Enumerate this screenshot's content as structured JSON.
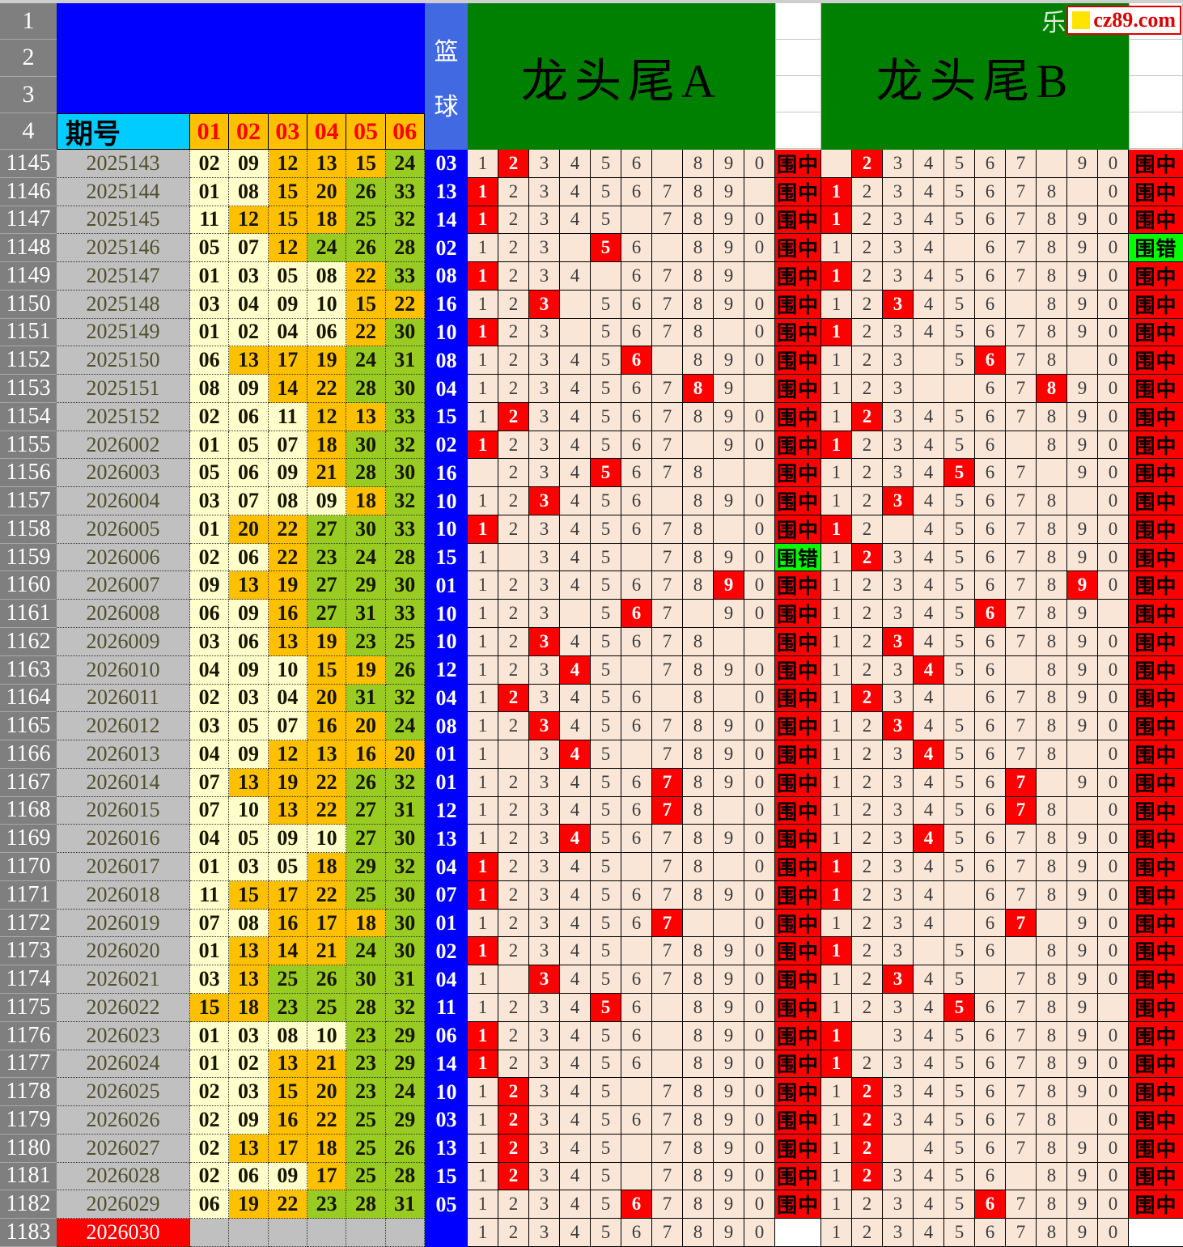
{
  "labels": {
    "period_col": "期号",
    "ball_headers": [
      "01",
      "02",
      "03",
      "04",
      "05",
      "06"
    ],
    "blue_col_chars": [
      "篮",
      "球"
    ],
    "title_a": "龙头尾A",
    "title_b": "龙头尾B",
    "hit": "围中",
    "miss": "围错",
    "header_row_labels": [
      "1",
      "2",
      "3",
      "4"
    ]
  },
  "logo": {
    "prefix": "乐",
    "text": "cz89.com"
  },
  "digits": [
    "1",
    "2",
    "3",
    "4",
    "5",
    "6",
    "7",
    "8",
    "9",
    "0"
  ],
  "colors": {
    "blue_block": "#0000FF",
    "blue_ball_bg": "#0000FF",
    "blue_header": "#4169E1",
    "gray_rownum": "#7F7F7F",
    "silver": "#C0C0C0",
    "cyan_header": "#00CCFF",
    "gold": "#FFC000",
    "pale": "#FFFFCC",
    "green_ball": "#99CC22",
    "green_title": "#008000",
    "cream": "#FAE6D7",
    "red": "#FF0000",
    "miss_green": "#00FF00",
    "logo_red": "#DD0000",
    "logo_yellow": "#FFE400",
    "period_text": "#4F4F2A"
  },
  "rows": [
    {
      "n": "1145",
      "p": "2025143",
      "b": [
        "02",
        "09",
        "12",
        "13",
        "15",
        "24"
      ],
      "q": "03",
      "ah": "2",
      "ax": [
        "7"
      ],
      "ar": "hit",
      "bh": "2",
      "bx": [
        "1",
        "8"
      ],
      "br": "hit"
    },
    {
      "n": "1146",
      "p": "2025144",
      "b": [
        "01",
        "08",
        "15",
        "20",
        "26",
        "33"
      ],
      "q": "13",
      "ah": "1",
      "ax": [
        "0"
      ],
      "ar": "hit",
      "bh": "1",
      "bx": [
        "9"
      ],
      "br": "hit"
    },
    {
      "n": "1147",
      "p": "2025145",
      "b": [
        "11",
        "12",
        "15",
        "18",
        "25",
        "32"
      ],
      "q": "14",
      "ah": "1",
      "ax": [
        "6"
      ],
      "ar": "hit",
      "bh": "1",
      "bx": [],
      "br": "hit"
    },
    {
      "n": "1148",
      "p": "2025146",
      "b": [
        "05",
        "07",
        "12",
        "24",
        "26",
        "28"
      ],
      "q": "02",
      "ah": "5",
      "ax": [
        "4",
        "7"
      ],
      "ar": "hit",
      "bh": "",
      "bx": [
        "5"
      ],
      "br": "miss"
    },
    {
      "n": "1149",
      "p": "2025147",
      "b": [
        "01",
        "03",
        "05",
        "08",
        "22",
        "33"
      ],
      "q": "08",
      "ah": "1",
      "ax": [
        "5",
        "0"
      ],
      "ar": "hit",
      "bh": "1",
      "bx": [],
      "br": "hit"
    },
    {
      "n": "1150",
      "p": "2025148",
      "b": [
        "03",
        "04",
        "09",
        "10",
        "15",
        "22"
      ],
      "q": "16",
      "ah": "3",
      "ax": [
        "4"
      ],
      "ar": "hit",
      "bh": "3",
      "bx": [
        "7"
      ],
      "br": "hit"
    },
    {
      "n": "1151",
      "p": "2025149",
      "b": [
        "01",
        "02",
        "04",
        "06",
        "22",
        "30"
      ],
      "q": "10",
      "ah": "1",
      "ax": [
        "4",
        "9"
      ],
      "ar": "hit",
      "bh": "1",
      "bx": [],
      "br": "hit"
    },
    {
      "n": "1152",
      "p": "2025150",
      "b": [
        "06",
        "13",
        "17",
        "19",
        "24",
        "31"
      ],
      "q": "08",
      "ah": "6",
      "ax": [
        "7"
      ],
      "ar": "hit",
      "bh": "6",
      "bx": [
        "4",
        "9"
      ],
      "br": "hit"
    },
    {
      "n": "1153",
      "p": "2025151",
      "b": [
        "08",
        "09",
        "14",
        "22",
        "28",
        "30"
      ],
      "q": "04",
      "ah": "8",
      "ax": [
        "0"
      ],
      "ar": "hit",
      "bh": "8",
      "bx": [
        "4",
        "5"
      ],
      "br": "hit"
    },
    {
      "n": "1154",
      "p": "2025152",
      "b": [
        "02",
        "06",
        "11",
        "12",
        "13",
        "33"
      ],
      "q": "15",
      "ah": "2",
      "ax": [],
      "ar": "hit",
      "bh": "2",
      "bx": [],
      "br": "hit"
    },
    {
      "n": "1155",
      "p": "2026002",
      "b": [
        "01",
        "05",
        "07",
        "18",
        "30",
        "32"
      ],
      "q": "02",
      "ah": "1",
      "ax": [
        "8"
      ],
      "ar": "hit",
      "bh": "1",
      "bx": [
        "7"
      ],
      "br": "hit"
    },
    {
      "n": "1156",
      "p": "2026003",
      "b": [
        "05",
        "06",
        "09",
        "21",
        "28",
        "30"
      ],
      "q": "16",
      "ah": "5",
      "ax": [
        "1",
        "9",
        "0"
      ],
      "ar": "hit",
      "bh": "5",
      "bx": [
        "8"
      ],
      "br": "hit"
    },
    {
      "n": "1157",
      "p": "2026004",
      "b": [
        "03",
        "07",
        "08",
        "09",
        "18",
        "32"
      ],
      "q": "10",
      "ah": "3",
      "ax": [
        "7"
      ],
      "ar": "hit",
      "bh": "3",
      "bx": [
        "9"
      ],
      "br": "hit"
    },
    {
      "n": "1158",
      "p": "2026005",
      "b": [
        "01",
        "20",
        "22",
        "27",
        "30",
        "33"
      ],
      "q": "10",
      "ah": "1",
      "ax": [
        "9"
      ],
      "ar": "hit",
      "bh": "1",
      "bx": [
        "3"
      ],
      "br": "hit"
    },
    {
      "n": "1159",
      "p": "2026006",
      "b": [
        "02",
        "06",
        "22",
        "23",
        "24",
        "28"
      ],
      "q": "15",
      "ah": "",
      "ax": [
        "2",
        "6"
      ],
      "ar": "miss",
      "bh": "2",
      "bx": [],
      "br": "hit"
    },
    {
      "n": "1160",
      "p": "2026007",
      "b": [
        "09",
        "13",
        "19",
        "27",
        "29",
        "30"
      ],
      "q": "01",
      "ah": "9",
      "ax": [],
      "ar": "hit",
      "bh": "9",
      "bx": [],
      "br": "hit"
    },
    {
      "n": "1161",
      "p": "2026008",
      "b": [
        "06",
        "09",
        "16",
        "27",
        "31",
        "33"
      ],
      "q": "10",
      "ah": "6",
      "ax": [
        "4",
        "8"
      ],
      "ar": "hit",
      "bh": "6",
      "bx": [
        "0"
      ],
      "br": "hit"
    },
    {
      "n": "1162",
      "p": "2026009",
      "b": [
        "03",
        "06",
        "13",
        "19",
        "23",
        "25"
      ],
      "q": "10",
      "ah": "3",
      "ax": [
        "9",
        "0"
      ],
      "ar": "hit",
      "bh": "3",
      "bx": [],
      "br": "hit"
    },
    {
      "n": "1163",
      "p": "2026010",
      "b": [
        "04",
        "09",
        "10",
        "15",
        "19",
        "26"
      ],
      "q": "12",
      "ah": "4",
      "ax": [
        "6"
      ],
      "ar": "hit",
      "bh": "4",
      "bx": [
        "7"
      ],
      "br": "hit"
    },
    {
      "n": "1164",
      "p": "2026011",
      "b": [
        "02",
        "03",
        "04",
        "20",
        "31",
        "32"
      ],
      "q": "04",
      "ah": "2",
      "ax": [
        "7",
        "9"
      ],
      "ar": "hit",
      "bh": "2",
      "bx": [
        "5"
      ],
      "br": "hit"
    },
    {
      "n": "1165",
      "p": "2026012",
      "b": [
        "03",
        "05",
        "07",
        "16",
        "20",
        "24"
      ],
      "q": "08",
      "ah": "3",
      "ax": [],
      "ar": "hit",
      "bh": "3",
      "bx": [],
      "br": "hit"
    },
    {
      "n": "1166",
      "p": "2026013",
      "b": [
        "04",
        "09",
        "12",
        "13",
        "16",
        "20"
      ],
      "q": "01",
      "ah": "4",
      "ax": [
        "2",
        "6"
      ],
      "ar": "hit",
      "bh": "4",
      "bx": [
        "9"
      ],
      "br": "hit"
    },
    {
      "n": "1167",
      "p": "2026014",
      "b": [
        "07",
        "13",
        "19",
        "22",
        "26",
        "32"
      ],
      "q": "01",
      "ah": "7",
      "ax": [],
      "ar": "hit",
      "bh": "7",
      "bx": [
        "8"
      ],
      "br": "hit"
    },
    {
      "n": "1168",
      "p": "2026015",
      "b": [
        "07",
        "10",
        "13",
        "22",
        "27",
        "31"
      ],
      "q": "12",
      "ah": "7",
      "ax": [
        "9"
      ],
      "ar": "hit",
      "bh": "7",
      "bx": [
        "9"
      ],
      "br": "hit"
    },
    {
      "n": "1169",
      "p": "2026016",
      "b": [
        "04",
        "05",
        "09",
        "10",
        "27",
        "30"
      ],
      "q": "13",
      "ah": "4",
      "ax": [],
      "ar": "hit",
      "bh": "4",
      "bx": [],
      "br": "hit"
    },
    {
      "n": "1170",
      "p": "2026017",
      "b": [
        "01",
        "03",
        "05",
        "18",
        "29",
        "32"
      ],
      "q": "04",
      "ah": "1",
      "ax": [
        "6",
        "9"
      ],
      "ar": "hit",
      "bh": "1",
      "bx": [],
      "br": "hit"
    },
    {
      "n": "1171",
      "p": "2026018",
      "b": [
        "11",
        "15",
        "17",
        "22",
        "25",
        "30"
      ],
      "q": "07",
      "ah": "1",
      "ax": [],
      "ar": "hit",
      "bh": "1",
      "bx": [
        "5"
      ],
      "br": "hit"
    },
    {
      "n": "1172",
      "p": "2026019",
      "b": [
        "07",
        "08",
        "16",
        "17",
        "18",
        "30"
      ],
      "q": "01",
      "ah": "7",
      "ax": [
        "8",
        "9"
      ],
      "ar": "hit",
      "bh": "7",
      "bx": [
        "5",
        "8"
      ],
      "br": "hit"
    },
    {
      "n": "1173",
      "p": "2026020",
      "b": [
        "01",
        "13",
        "14",
        "21",
        "24",
        "30"
      ],
      "q": "02",
      "ah": "1",
      "ax": [
        "6"
      ],
      "ar": "hit",
      "bh": "1",
      "bx": [
        "4",
        "7"
      ],
      "br": "hit"
    },
    {
      "n": "1174",
      "p": "2026021",
      "b": [
        "03",
        "13",
        "25",
        "26",
        "30",
        "31"
      ],
      "q": "04",
      "ah": "3",
      "ax": [
        "2"
      ],
      "ar": "hit",
      "bh": "3",
      "bx": [
        "6"
      ],
      "br": "hit"
    },
    {
      "n": "1175",
      "p": "2026022",
      "b": [
        "15",
        "18",
        "23",
        "25",
        "28",
        "32"
      ],
      "q": "11",
      "ah": "5",
      "ax": [
        "7"
      ],
      "ar": "hit",
      "bh": "5",
      "bx": [
        "0"
      ],
      "br": "hit"
    },
    {
      "n": "1176",
      "p": "2026023",
      "b": [
        "01",
        "03",
        "08",
        "10",
        "23",
        "29"
      ],
      "q": "06",
      "ah": "1",
      "ax": [
        "7"
      ],
      "ar": "hit",
      "bh": "1",
      "bx": [
        "2"
      ],
      "br": "hit"
    },
    {
      "n": "1177",
      "p": "2026024",
      "b": [
        "01",
        "02",
        "13",
        "21",
        "23",
        "29"
      ],
      "q": "14",
      "ah": "1",
      "ax": [
        "7"
      ],
      "ar": "hit",
      "bh": "1",
      "bx": [],
      "br": "hit"
    },
    {
      "n": "1178",
      "p": "2026025",
      "b": [
        "02",
        "03",
        "15",
        "20",
        "23",
        "24"
      ],
      "q": "10",
      "ah": "2",
      "ax": [
        "6"
      ],
      "ar": "hit",
      "bh": "2",
      "bx": [],
      "br": "hit"
    },
    {
      "n": "1179",
      "p": "2026026",
      "b": [
        "02",
        "09",
        "16",
        "22",
        "25",
        "29"
      ],
      "q": "03",
      "ah": "2",
      "ax": [],
      "ar": "hit",
      "bh": "2",
      "bx": [
        "9"
      ],
      "br": "hit"
    },
    {
      "n": "1180",
      "p": "2026027",
      "b": [
        "02",
        "13",
        "17",
        "18",
        "25",
        "26"
      ],
      "q": "13",
      "ah": "2",
      "ax": [
        "6"
      ],
      "ar": "hit",
      "bh": "2",
      "bx": [
        "3"
      ],
      "br": "hit"
    },
    {
      "n": "1181",
      "p": "2026028",
      "b": [
        "02",
        "06",
        "09",
        "17",
        "25",
        "28"
      ],
      "q": "15",
      "ah": "2",
      "ax": [
        "6"
      ],
      "ar": "hit",
      "bh": "2",
      "bx": [
        "7"
      ],
      "br": "hit"
    },
    {
      "n": "1182",
      "p": "2026029",
      "b": [
        "06",
        "19",
        "22",
        "23",
        "28",
        "31"
      ],
      "q": "05",
      "ah": "6",
      "ax": [],
      "ar": "hit",
      "bh": "6",
      "bx": [],
      "br": "hit"
    },
    {
      "n": "1183",
      "p": "2026030",
      "b": [],
      "q": "",
      "ah": "",
      "ax": [],
      "ar": "",
      "bh": "",
      "bx": [],
      "br": ""
    }
  ]
}
